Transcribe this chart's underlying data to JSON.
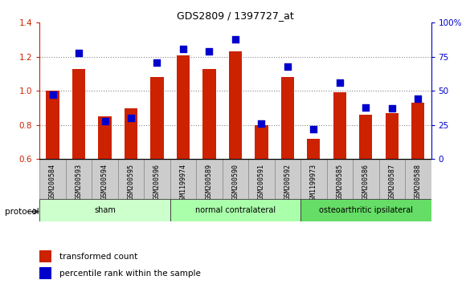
{
  "title": "GDS2809 / 1397727_at",
  "samples": [
    "GSM200584",
    "GSM200593",
    "GSM200594",
    "GSM200595",
    "GSM200596",
    "GSM1199974",
    "GSM200589",
    "GSM200590",
    "GSM200591",
    "GSM200592",
    "GSM1199973",
    "GSM200585",
    "GSM200586",
    "GSM200587",
    "GSM200588"
  ],
  "bar_values": [
    1.0,
    1.13,
    0.85,
    0.9,
    1.08,
    1.21,
    1.13,
    1.23,
    0.8,
    1.08,
    0.72,
    0.99,
    0.86,
    0.87,
    0.93
  ],
  "dot_values": [
    47,
    78,
    28,
    30,
    71,
    81,
    79,
    88,
    26,
    68,
    22,
    56,
    38,
    37,
    44
  ],
  "bar_color": "#cc2200",
  "dot_color": "#0000cc",
  "ylim_left": [
    0.6,
    1.4
  ],
  "ylim_right": [
    0,
    100
  ],
  "yticks_left": [
    0.6,
    0.8,
    1.0,
    1.2,
    1.4
  ],
  "yticks_right": [
    0,
    25,
    50,
    75,
    100
  ],
  "ytick_labels_right": [
    "0",
    "25",
    "50",
    "75",
    "100%"
  ],
  "groups": [
    {
      "label": "sham",
      "start": 0,
      "end": 5,
      "color": "#ccffcc"
    },
    {
      "label": "normal contralateral",
      "start": 5,
      "end": 10,
      "color": "#aaffaa"
    },
    {
      "label": "osteoarthritic ipsilateral",
      "start": 10,
      "end": 15,
      "color": "#66dd66"
    }
  ],
  "protocol_label": "protocol",
  "legend_bar_label": "transformed count",
  "legend_dot_label": "percentile rank within the sample",
  "grid_color": "#888888",
  "background_color": "#ffffff",
  "plot_bg_color": "#ffffff",
  "tick_label_color_left": "#cc2200",
  "tick_label_color_right": "#0000cc",
  "bar_bottom": 0.6,
  "dot_size": 30,
  "bar_width": 0.5
}
